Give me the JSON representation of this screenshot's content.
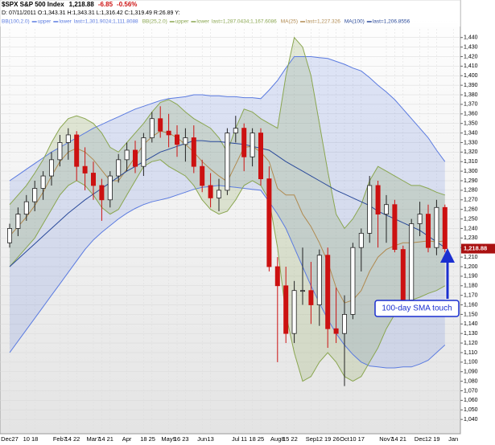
{
  "chart_data": {
    "type": "candlestick",
    "header": {
      "symbol": "$SPX S&P 500 Index",
      "last": "1,218.88",
      "change": "-6.85",
      "change_pct": "-0.56%",
      "info": "D: 07/11/2011 O:1,343.31 H:1,343.31 L:1,316.42 C:1,319.49 R:26.89 Y:"
    },
    "categories": [
      "Dec27",
      null,
      "10",
      "18",
      null,
      null,
      "Feb7",
      "14",
      "22",
      null,
      "Mar7",
      "14",
      "21",
      null,
      "Apr",
      null,
      "18",
      "25",
      null,
      "May9",
      "16",
      "23",
      null,
      "Jun",
      "13",
      null,
      null,
      "Jul",
      "11",
      "18",
      "25",
      null,
      "Aug8",
      "15",
      "22",
      null,
      "Sep",
      "12",
      "19",
      "26",
      "Oct",
      "10",
      "17",
      null,
      null,
      "Nov7",
      "14",
      "21",
      null,
      "Dec",
      "12",
      "19",
      null,
      "Jan"
    ],
    "ohlc": {
      "open": [
        1225,
        1240,
        1255,
        1268,
        1282,
        1295,
        1312,
        1330,
        1338,
        1305,
        1298,
        1285,
        1270,
        1295,
        1312,
        1322,
        1305,
        1335,
        1355,
        1342,
        1338,
        1328,
        1335,
        1305,
        1285,
        1272,
        1280,
        1340,
        1345,
        1315,
        1340,
        1292,
        1200,
        1180,
        1130,
        1175,
        1175,
        1160,
        1212,
        1135,
        1130,
        1150,
        1220,
        1235,
        1285,
        1255,
        1265,
        1218,
        1165,
        1245,
        1255,
        1220,
        1262,
        null
      ],
      "high": [
        1245,
        1262,
        1275,
        1290,
        1300,
        1320,
        1338,
        1345,
        1342,
        1325,
        1310,
        1292,
        1300,
        1318,
        1330,
        1332,
        1340,
        1362,
        1368,
        1360,
        1348,
        1345,
        1348,
        1312,
        1298,
        1292,
        1345,
        1358,
        1350,
        1345,
        1345,
        1305,
        1210,
        1200,
        1185,
        1220,
        1205,
        1218,
        1220,
        1178,
        1170,
        1225,
        1240,
        1295,
        1290,
        1275,
        1270,
        1222,
        1250,
        1268,
        1265,
        1270,
        1265,
        null
      ],
      "low": [
        1220,
        1232,
        1248,
        1258,
        1270,
        1285,
        1305,
        1312,
        1290,
        1280,
        1270,
        1248,
        1262,
        1288,
        1300,
        1298,
        1295,
        1330,
        1335,
        1325,
        1315,
        1310,
        1298,
        1278,
        1262,
        1258,
        1275,
        1330,
        1300,
        1305,
        1285,
        1195,
        1100,
        1120,
        1120,
        1160,
        1140,
        1138,
        1115,
        1120,
        1075,
        1145,
        1195,
        1225,
        1220,
        1225,
        1215,
        1158,
        1160,
        1232,
        1215,
        1212,
        1215,
        null
      ],
      "close": [
        1240,
        1255,
        1268,
        1282,
        1295,
        1312,
        1330,
        1338,
        1305,
        1298,
        1285,
        1270,
        1295,
        1312,
        1322,
        1305,
        1335,
        1355,
        1342,
        1338,
        1328,
        1335,
        1305,
        1285,
        1272,
        1280,
        1340,
        1345,
        1315,
        1340,
        1292,
        1200,
        1180,
        1130,
        1175,
        1175,
        1160,
        1212,
        1135,
        1130,
        1150,
        1220,
        1235,
        1285,
        1255,
        1265,
        1218,
        1165,
        1245,
        1255,
        1220,
        1262,
        1218.88,
        null
      ]
    },
    "up_color": "#222222",
    "down_color": "#cc1111",
    "series": [
      {
        "name": "BB(100,2.0)",
        "color": "#5b7be0",
        "upper_label": "upper",
        "lower_label": "lower",
        "last": "last=1,301.9024;1,111.8088",
        "upper": [
          1290,
          1296,
          1302,
          1308,
          1314,
          1320,
          1325,
          1330,
          1335,
          1340,
          1345,
          1349,
          1353,
          1357,
          1361,
          1365,
          1368,
          1371,
          1374,
          1376,
          1377,
          1378,
          1380,
          1380,
          1379,
          1379,
          1378,
          1378,
          1377,
          1377,
          1376,
          1385,
          1395,
          1408,
          1420,
          1420,
          1420,
          1419,
          1418,
          1415,
          1412,
          1408,
          1405,
          1398,
          1390,
          1383,
          1375,
          1365,
          1355,
          1345,
          1335,
          1322,
          1310,
          null
        ],
        "lower": [
          1110,
          1122,
          1134,
          1146,
          1158,
          1170,
          1182,
          1194,
          1206,
          1218,
          1228,
          1236,
          1243,
          1250,
          1256,
          1261,
          1265,
          1268,
          1270,
          1272,
          1275,
          1278,
          1281,
          1283,
          1284,
          1285,
          1284,
          1283,
          1282,
          1281,
          1280,
          1268,
          1255,
          1240,
          1220,
          1200,
          1180,
          1162,
          1145,
          1130,
          1118,
          1108,
          1100,
          1096,
          1095,
          1094,
          1094,
          1095,
          1095,
          1098,
          1102,
          1110,
          1118,
          null
        ]
      },
      {
        "name": "BB(25,2.0)",
        "color": "#8aa650",
        "upper_label": "upper",
        "lower_label": "lower",
        "last": "last=1,287.0434;1,167.6086",
        "upper": [
          1265,
          1275,
          1285,
          1298,
          1312,
          1330,
          1345,
          1355,
          1358,
          1355,
          1350,
          1340,
          1325,
          1320,
          1330,
          1340,
          1350,
          1362,
          1372,
          1375,
          1370,
          1362,
          1355,
          1350,
          1345,
          1335,
          1320,
          1345,
          1365,
          1362,
          1355,
          1350,
          1345,
          1400,
          1440,
          1430,
          1400,
          1350,
          1300,
          1255,
          1240,
          1250,
          1265,
          1290,
          1305,
          1300,
          1295,
          1290,
          1285,
          1285,
          1282,
          1278,
          1275,
          null
        ],
        "lower": [
          1200,
          1210,
          1220,
          1230,
          1245,
          1260,
          1275,
          1285,
          1290,
          1285,
          1275,
          1262,
          1255,
          1260,
          1275,
          1290,
          1305,
          1310,
          1312,
          1305,
          1300,
          1295,
          1285,
          1270,
          1260,
          1255,
          1258,
          1270,
          1285,
          1290,
          1285,
          1270,
          1220,
          1150,
          1110,
          1080,
          1085,
          1100,
          1110,
          1100,
          1085,
          1080,
          1085,
          1100,
          1115,
          1135,
          1150,
          1160,
          1165,
          1168,
          1172,
          1175,
          1180,
          null
        ]
      },
      {
        "name": "MA(25)",
        "color": "#b08a50",
        "last": "last=1,227.326",
        "values": [
          1232,
          1242,
          1252,
          1264,
          1278,
          1295,
          1310,
          1320,
          1324,
          1320,
          1312,
          1301,
          1290,
          1290,
          1302,
          1315,
          1328,
          1336,
          1342,
          1340,
          1335,
          1328,
          1320,
          1310,
          1302,
          1295,
          1289,
          1307,
          1325,
          1326,
          1320,
          1310,
          1282,
          1275,
          1275,
          1255,
          1242,
          1225,
          1205,
          1178,
          1162,
          1165,
          1175,
          1195,
          1210,
          1218,
          1222,
          1225,
          1225,
          1226,
          1227,
          1226,
          1227,
          null
        ]
      },
      {
        "name": "MA(100)",
        "color": "#2a4a9a",
        "last": "last=1,206.8556",
        "values": [
          1200,
          1208,
          1216,
          1224,
          1232,
          1240,
          1248,
          1256,
          1263,
          1270,
          1276,
          1282,
          1288,
          1294,
          1300,
          1305,
          1310,
          1315,
          1320,
          1323,
          1326,
          1329,
          1332,
          1332,
          1331,
          1331,
          1330,
          1329,
          1328,
          1326,
          1324,
          1322,
          1316,
          1310,
          1305,
          1300,
          1295,
          1290,
          1285,
          1280,
          1276,
          1272,
          1268,
          1264,
          1258,
          1254,
          1250,
          1246,
          1242,
          1238,
          1232,
          1226,
          1220,
          null
        ]
      }
    ],
    "annotation": "100-day SMA touch",
    "ylim": [
      1025,
      1449
    ],
    "yticks": [
      {
        "value": 1040,
        "label": "1,040"
      },
      {
        "value": 1050,
        "label": "1,050"
      },
      {
        "value": 1060,
        "label": "1,060"
      },
      {
        "value": 1070,
        "label": "1,070"
      },
      {
        "value": 1080,
        "label": "1,080"
      },
      {
        "value": 1090,
        "label": "1,090"
      },
      {
        "value": 1100,
        "label": "1,100"
      },
      {
        "value": 1110,
        "label": "1,110"
      },
      {
        "value": 1120,
        "label": "1,120"
      },
      {
        "value": 1130,
        "label": "1,130"
      },
      {
        "value": 1140,
        "label": "1,140"
      },
      {
        "value": 1150,
        "label": "1,150"
      },
      {
        "value": 1160,
        "label": "1,160"
      },
      {
        "value": 1170,
        "label": "1,170"
      },
      {
        "value": 1180,
        "label": "1,180"
      },
      {
        "value": 1190,
        "label": "1,190"
      },
      {
        "value": 1200,
        "label": "1,200"
      },
      {
        "value": 1210,
        "label": "1,210"
      },
      {
        "value": 1220,
        "label": "1,220"
      },
      {
        "value": 1230,
        "label": "1,230"
      },
      {
        "value": 1240,
        "label": "1,240"
      },
      {
        "value": 1250,
        "label": "1,250"
      },
      {
        "value": 1260,
        "label": "1,260"
      },
      {
        "value": 1270,
        "label": "1,270"
      },
      {
        "value": 1280,
        "label": "1,280"
      },
      {
        "value": 1290,
        "label": "1,290"
      },
      {
        "value": 1300,
        "label": "1,300"
      },
      {
        "value": 1310,
        "label": "1,310"
      },
      {
        "value": 1320,
        "label": "1,320"
      },
      {
        "value": 1330,
        "label": "1,330"
      },
      {
        "value": 1340,
        "label": "1,340"
      },
      {
        "value": 1350,
        "label": "1,350"
      },
      {
        "value": 1360,
        "label": "1,360"
      },
      {
        "value": 1370,
        "label": "1,370"
      },
      {
        "value": 1380,
        "label": "1,380"
      },
      {
        "value": 1390,
        "label": "1,390"
      },
      {
        "value": 1400,
        "label": "1,400"
      },
      {
        "value": 1410,
        "label": "1,410"
      },
      {
        "value": 1420,
        "label": "1,420"
      },
      {
        "value": 1430,
        "label": "1,430"
      },
      {
        "value": 1440,
        "label": "1,440"
      }
    ],
    "grid": true
  }
}
